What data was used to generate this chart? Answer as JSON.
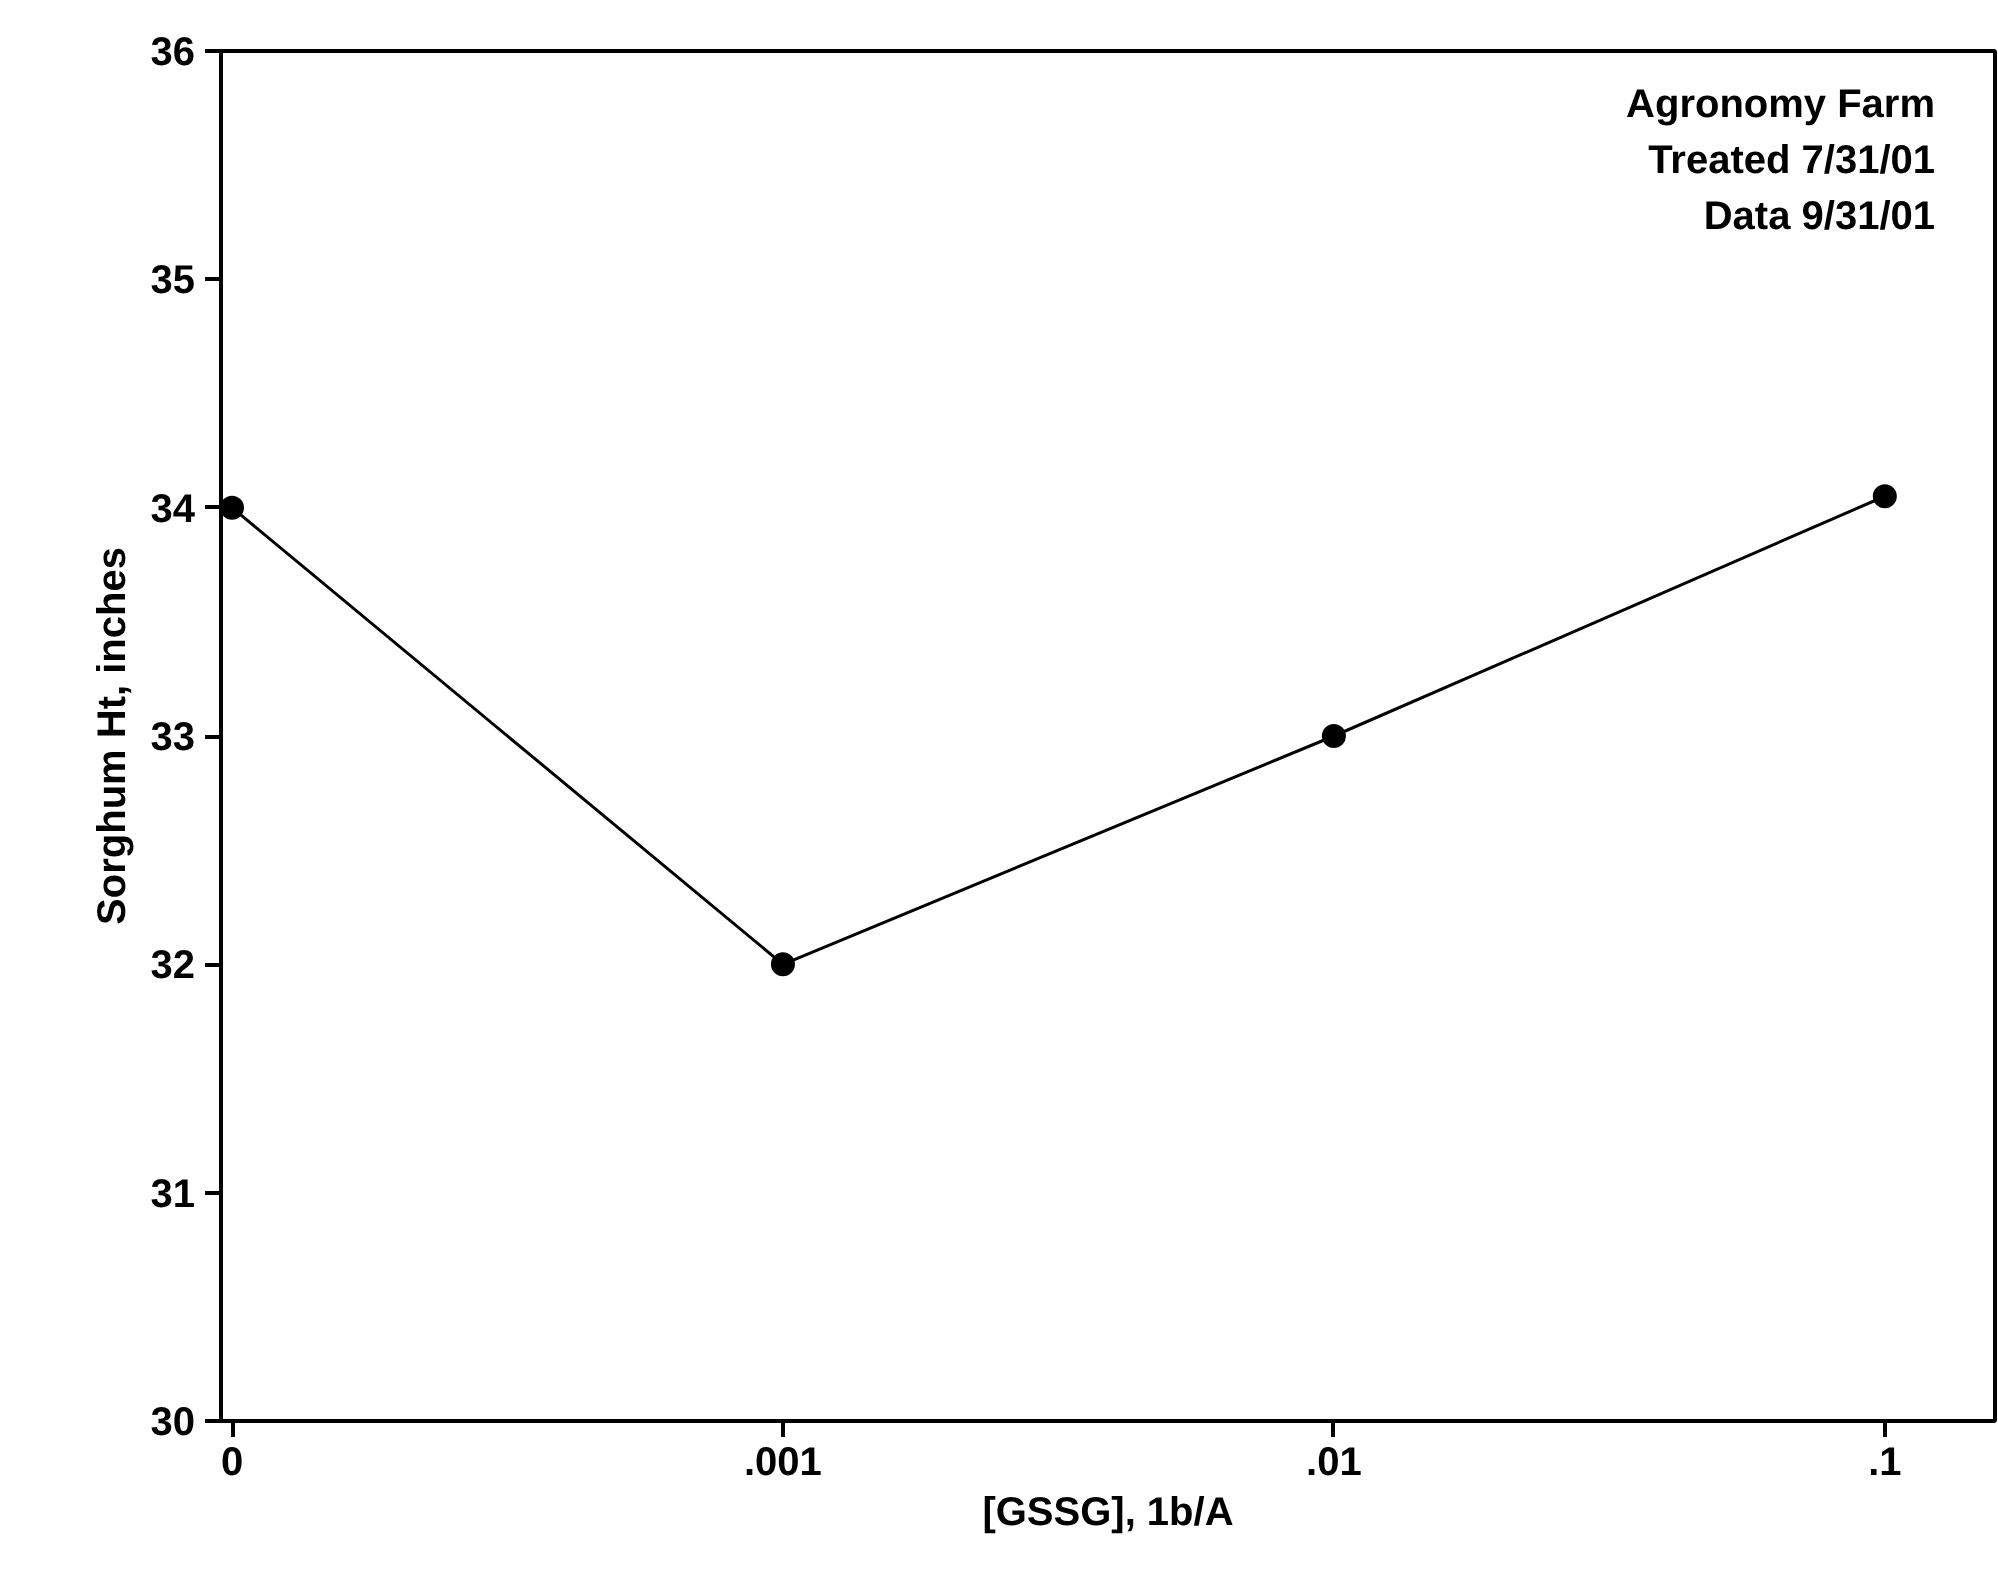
{
  "chart_data": {
    "type": "line",
    "xlabel": "[GSSG], 1b/A",
    "ylabel": "Sorghum Ht, inches",
    "categories": [
      "0",
      ".001",
      ".01",
      ".1"
    ],
    "series": [
      {
        "color": "#000000",
        "values": [
          34,
          32,
          33,
          34.05
        ]
      }
    ],
    "ylim": [
      30,
      36
    ],
    "yticks": [
      30,
      31,
      32,
      33,
      34,
      35,
      36
    ],
    "marker": "circle",
    "line_style": "solid",
    "grid": false,
    "annotations": [
      "Agronomy Farm",
      "Treated 7/31/01",
      "Data 9/31/01"
    ]
  }
}
